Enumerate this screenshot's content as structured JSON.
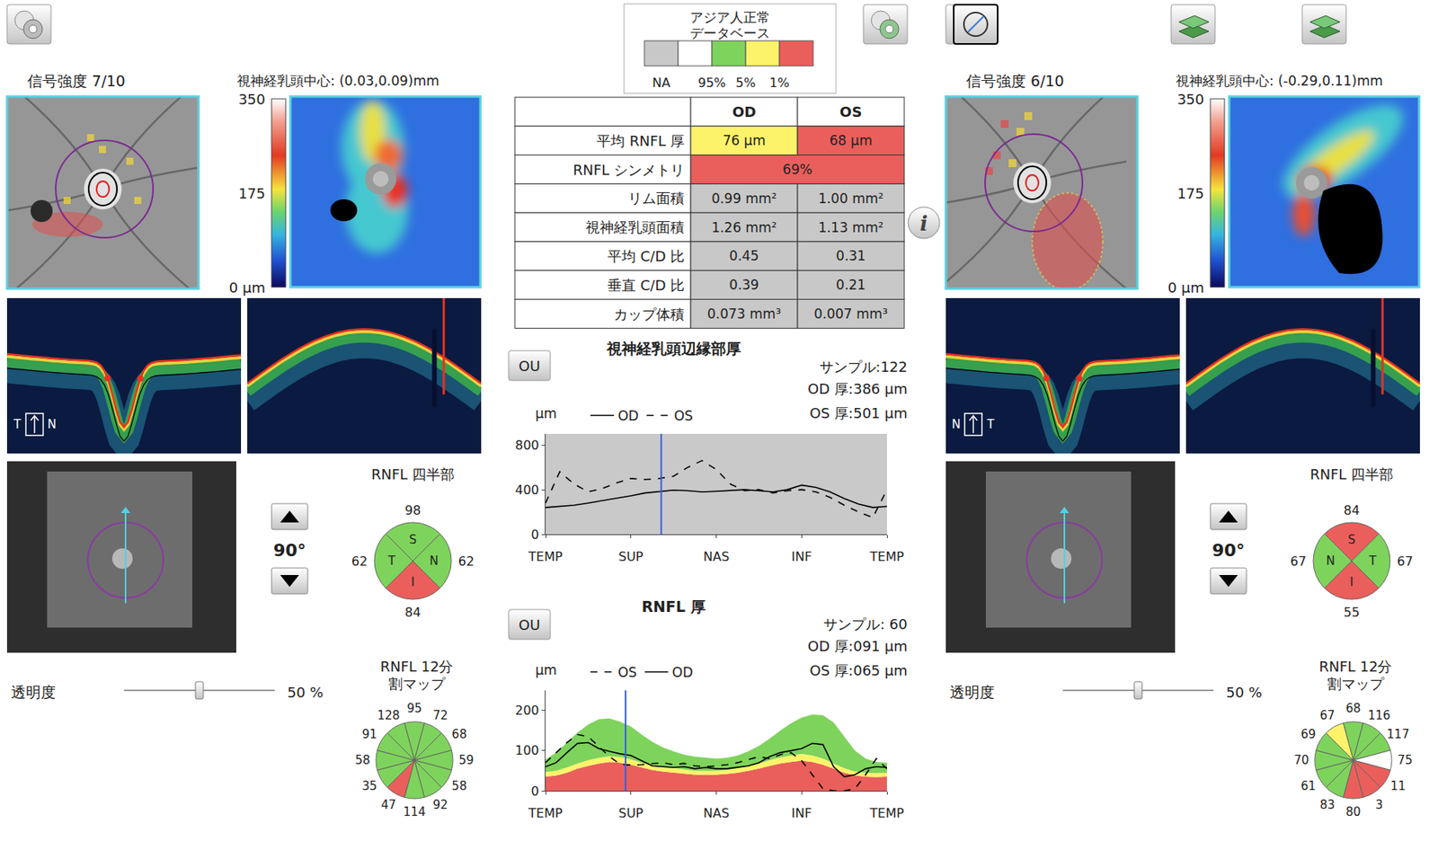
{
  "header": {
    "legend_title": [
      "アジア人正常",
      "データベース"
    ],
    "legend_colors": [
      "#c8c8c8",
      "#ffffff",
      "#7ed35c",
      "#fdf36a",
      "#ea5f5b"
    ],
    "legend_labels": [
      "NA",
      "95%",
      "5%",
      "1%"
    ],
    "info_button": "i"
  },
  "table": {
    "columns": [
      "OD",
      "OS"
    ],
    "rows": [
      {
        "label": "平均 RNFL 厚",
        "cells": [
          {
            "text": "76 µm",
            "color": "#fdf36a"
          },
          {
            "text": "68 µm",
            "color": "#ea5f5b"
          }
        ]
      },
      {
        "label": "RNFL シンメトリ",
        "cells": [
          {
            "text": "69%",
            "color": "#ea5f5b"
          }
        ]
      },
      {
        "label": "リム面積",
        "cells": [
          {
            "text": "0.99 mm²",
            "color": "#c8c8c8"
          },
          {
            "text": "1.00 mm²",
            "color": "#c8c8c8"
          }
        ]
      },
      {
        "label": "視神経乳頭面積",
        "cells": [
          {
            "text": "1.26 mm²",
            "color": "#c8c8c8"
          },
          {
            "text": "1.13 mm²",
            "color": "#c8c8c8"
          }
        ]
      },
      {
        "label": "平均 C/D 比",
        "cells": [
          {
            "text": "0.45",
            "color": "#c8c8c8"
          },
          {
            "text": "0.31",
            "color": "#c8c8c8"
          }
        ]
      },
      {
        "label": "垂直 C/D 比",
        "cells": [
          {
            "text": "0.39",
            "color": "#c8c8c8"
          },
          {
            "text": "0.21",
            "color": "#c8c8c8"
          }
        ]
      },
      {
        "label": "カップ体積",
        "cells": [
          {
            "text": "0.073 mm³",
            "color": "#c8c8c8"
          },
          {
            "text": "0.007 mm³",
            "color": "#c8c8c8"
          }
        ]
      }
    ]
  },
  "eyes": [
    {
      "signal": "信号強度  7/10",
      "disc_center": "視神経乳頭中心:  (0.03,0.09)mm",
      "colorbar": {
        "range": [
          0,
          350
        ],
        "ticks": [
          {
            "value": 0,
            "label": "0 µm"
          },
          175,
          350
        ]
      },
      "bscan_labels": [
        "T",
        "N"
      ],
      "scan_angle": {
        "value": 90,
        "label": "90°"
      },
      "transparency": {
        "title": "透明度",
        "value": 50,
        "label": "50 %"
      },
      "quadrants": {
        "title": "RNFL 四半部",
        "labels": [
          "S",
          "N",
          "I",
          "T"
        ],
        "values": [
          98,
          62,
          84,
          62
        ],
        "colors": [
          "#7ed35c",
          "#7ed35c",
          "#ea5f5b",
          "#7ed35c"
        ]
      },
      "clock": {
        "title": [
          "RNFL  12分",
          "割マップ"
        ],
        "values": [
          95,
          72,
          68,
          59,
          58,
          92,
          114,
          47,
          35,
          58,
          91,
          128
        ],
        "colors": [
          "#7ed35c",
          "#7ed35c",
          "#7ed35c",
          "#7ed35c",
          "#7ed35c",
          "#7ed35c",
          "#7ed35c",
          "#ea5f5b",
          "#7ed35c",
          "#7ed35c",
          "#7ed35c",
          "#7ed35c"
        ]
      }
    },
    {
      "signal": "信号強度  6/10",
      "disc_center": "視神経乳頭中心:  (-0.29,0.11)mm",
      "colorbar": {
        "range": [
          0,
          350
        ],
        "ticks": [
          {
            "value": 0,
            "label": "0 µm"
          },
          175,
          350
        ]
      },
      "bscan_labels": [
        "N",
        "T"
      ],
      "scan_angle": {
        "value": 90,
        "label": "90°"
      },
      "transparency": {
        "title": "透明度",
        "value": 50,
        "label": "50 %"
      },
      "quadrants": {
        "title": "RNFL 四半部",
        "labels": [
          "S",
          "T",
          "I",
          "N"
        ],
        "values": [
          84,
          67,
          55,
          67
        ],
        "colors": [
          "#ea5f5b",
          "#7ed35c",
          "#ea5f5b",
          "#7ed35c"
        ]
      },
      "clock": {
        "title": [
          "RNFL  12分",
          "割マップ"
        ],
        "values": [
          68,
          116,
          117,
          75,
          11,
          3,
          80,
          83,
          61,
          70,
          69,
          67
        ],
        "colors": [
          "#7ed35c",
          "#7ed35c",
          "#7ed35c",
          "#ffffff",
          "#ea5f5b",
          "#ea5f5b",
          "#ea5f5b",
          "#7ed35c",
          "#7ed35c",
          "#7ed35c",
          "#7ed35c",
          "#fdf36a"
        ]
      }
    }
  ],
  "chart_data": [
    {
      "type": "line",
      "title": "視神経乳頭辺縁部厚",
      "button": "OU",
      "sample_label": "サンプル:122",
      "sample": 122,
      "readouts": [
        "OD 厚:386 µm",
        "OS 厚:501 µm"
      ],
      "y_label": "µm",
      "legend": "top",
      "x": [
        0,
        15,
        30,
        45,
        60,
        75,
        90,
        105,
        120,
        135,
        150,
        165,
        180,
        195,
        210,
        225,
        240,
        255,
        270,
        285,
        300,
        315,
        330,
        345,
        360
      ],
      "xlim": [
        0,
        360
      ],
      "xticks": [
        {
          "value": 0,
          "label": "TEMP"
        },
        {
          "value": 90,
          "label": "SUP"
        },
        {
          "value": 180,
          "label": "NAS"
        },
        {
          "value": 270,
          "label": "INF"
        },
        {
          "value": 360,
          "label": "TEMP"
        }
      ],
      "ylim": [
        0,
        900
      ],
      "yticks": [
        0,
        400,
        800
      ],
      "series": [
        {
          "name": "OD",
          "color": "#000000",
          "line_style": "solid",
          "values": [
            240,
            250,
            260,
            280,
            300,
            320,
            345,
            370,
            385,
            395,
            390,
            380,
            385,
            395,
            400,
            390,
            380,
            400,
            440,
            420,
            380,
            320,
            270,
            240,
            250
          ]
        },
        {
          "name": "OS",
          "color": "#000000",
          "line_style": "dash",
          "values": [
            280,
            560,
            450,
            380,
            410,
            460,
            500,
            490,
            500,
            520,
            600,
            660,
            580,
            450,
            390,
            400,
            370,
            390,
            400,
            380,
            330,
            260,
            200,
            150,
            400
          ]
        }
      ]
    },
    {
      "type": "line",
      "title": "RNFL 厚",
      "button": "OU",
      "sample_label": "サンプル: 60",
      "sample": 60,
      "readouts": [
        "OD 厚:091 µm",
        "OS 厚:065 µm"
      ],
      "y_label": "µm",
      "legend": "top",
      "x": [
        0,
        8,
        16,
        24,
        32,
        40,
        48,
        56,
        64,
        72,
        80,
        88,
        96,
        104,
        112,
        120,
        128,
        136,
        144,
        152,
        160,
        168,
        176,
        184,
        192,
        200,
        208,
        216,
        224,
        232,
        240,
        248,
        256
      ],
      "xlim": [
        0,
        256
      ],
      "xticks": [
        {
          "value": 0,
          "label": "TEMP"
        },
        {
          "value": 64,
          "label": "SUP"
        },
        {
          "value": 128,
          "label": "NAS"
        },
        {
          "value": 192,
          "label": "INF"
        },
        {
          "value": 256,
          "label": "TEMP"
        }
      ],
      "ylim": [
        0,
        250
      ],
      "yticks": [
        0,
        100,
        200
      ],
      "series": [
        {
          "type": "area",
          "color": "#ea5f5b",
          "values": [
            35,
            38,
            45,
            55,
            62,
            68,
            72,
            70,
            65,
            58,
            52,
            48,
            45,
            42,
            40,
            40,
            40,
            42,
            45,
            50,
            55,
            62,
            68,
            72,
            75,
            72,
            65,
            55,
            45,
            38,
            35,
            34,
            35
          ]
        },
        {
          "type": "area",
          "color": "#fdf36a",
          "values": [
            47,
            50,
            58,
            68,
            76,
            82,
            86,
            84,
            78,
            70,
            64,
            60,
            56,
            53,
            50,
            50,
            50,
            52,
            56,
            62,
            68,
            76,
            83,
            88,
            92,
            88,
            80,
            68,
            56,
            48,
            45,
            44,
            45
          ]
        },
        {
          "type": "area",
          "color": "#7ed35c",
          "values": [
            78,
            95,
            120,
            145,
            165,
            178,
            180,
            172,
            160,
            140,
            122,
            108,
            98,
            90,
            85,
            82,
            80,
            82,
            88,
            98,
            112,
            130,
            150,
            168,
            182,
            190,
            188,
            170,
            135,
            100,
            80,
            72,
            70
          ]
        },
        {
          "name": "OD",
          "color": "#000000",
          "line_style": "solid",
          "values": [
            60,
            70,
            95,
            118,
            120,
            105,
            98,
            92,
            88,
            75,
            62,
            60,
            58,
            60,
            55,
            58,
            55,
            55,
            58,
            62,
            70,
            85,
            95,
            100,
            105,
            118,
            115,
            60,
            35,
            40,
            55,
            60,
            58
          ]
        },
        {
          "name": "OS",
          "color": "#000000",
          "line_style": "dash",
          "values": [
            70,
            95,
            120,
            140,
            135,
            110,
            85,
            66,
            64,
            65,
            68,
            70,
            65,
            68,
            62,
            60,
            62,
            65,
            70,
            78,
            85,
            80,
            90,
            95,
            75,
            40,
            5,
            0,
            0,
            5,
            40,
            80,
            55
          ]
        }
      ]
    }
  ]
}
